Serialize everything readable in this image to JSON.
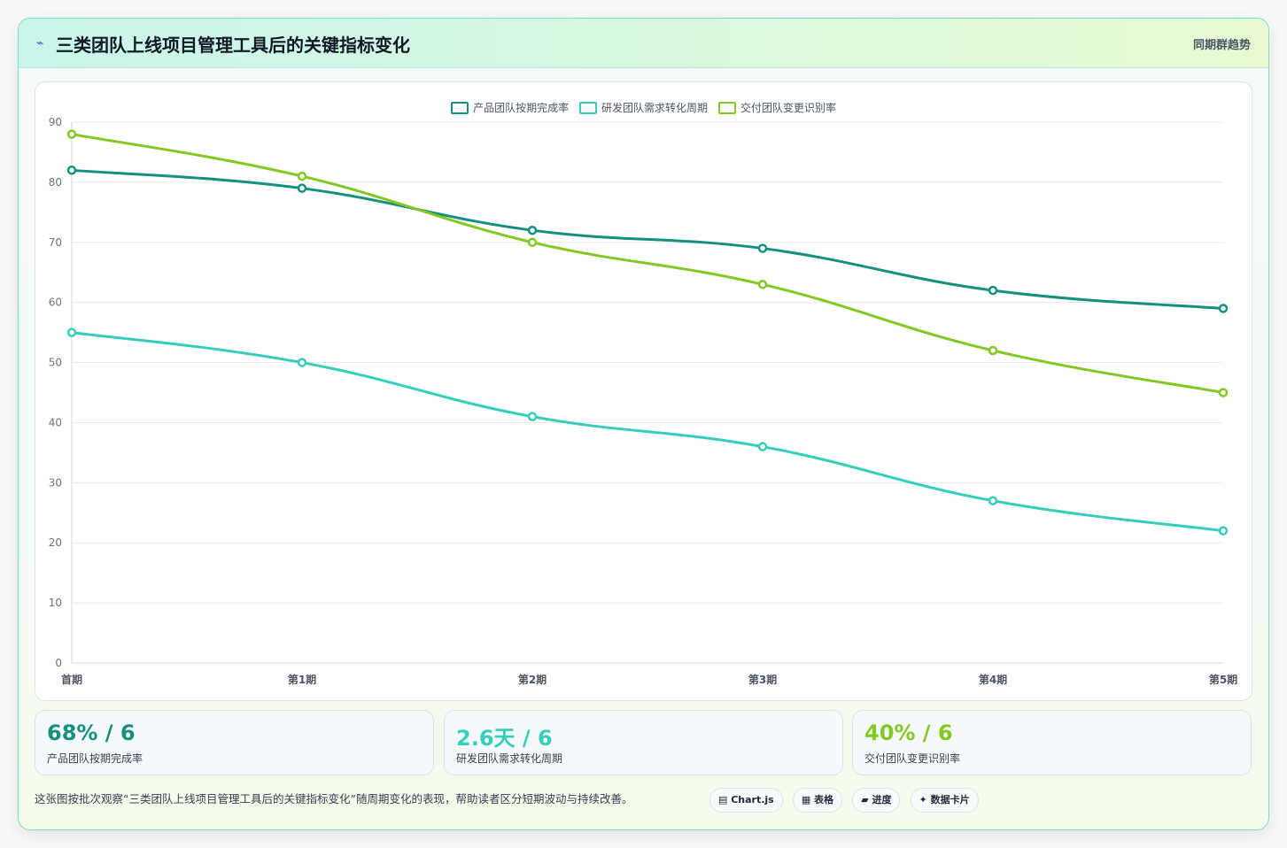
{
  "header": {
    "icon": "lightning-icon",
    "title": "三类团队上线项目管理工具后的关键指标变化",
    "right_label": "同期群趋势"
  },
  "chart_data": {
    "type": "line",
    "categories": [
      "首期",
      "第1期",
      "第2期",
      "第3期",
      "第4期",
      "第5期"
    ],
    "ylim": [
      0,
      90
    ],
    "yticks": [
      0,
      10,
      20,
      30,
      40,
      50,
      60,
      70,
      80,
      90
    ],
    "grid": true,
    "legend_position": "top-center",
    "series": [
      {
        "name": "产品团队按期完成率",
        "color": "#14907f",
        "values": [
          82,
          79,
          72,
          69,
          62,
          59
        ]
      },
      {
        "name": "研发团队需求转化周期",
        "color": "#34cfbc",
        "values": [
          55,
          50,
          41,
          36,
          27,
          22
        ]
      },
      {
        "name": "交付团队变更识别率",
        "color": "#84c823",
        "values": [
          88,
          81,
          70,
          63,
          52,
          45
        ]
      }
    ]
  },
  "stats": [
    {
      "value": "68% / 6",
      "label": "产品团队按期完成率",
      "color": "#14907f"
    },
    {
      "value": "2.6天 / 6",
      "label": "研发团队需求转化周期",
      "color": "#34cfbc"
    },
    {
      "value": "40% / 6",
      "label": "交付团队变更识别率",
      "color": "#84c823"
    }
  ],
  "footer": {
    "note": "这张图按批次观察“三类团队上线项目管理工具后的关键指标变化”随周期变化的表现，帮助读者区分短期波动与持续改善。",
    "tags": [
      "▤ Chart.js",
      "▦ 表格",
      "▰ 进度",
      "✦ 数据卡片"
    ]
  }
}
